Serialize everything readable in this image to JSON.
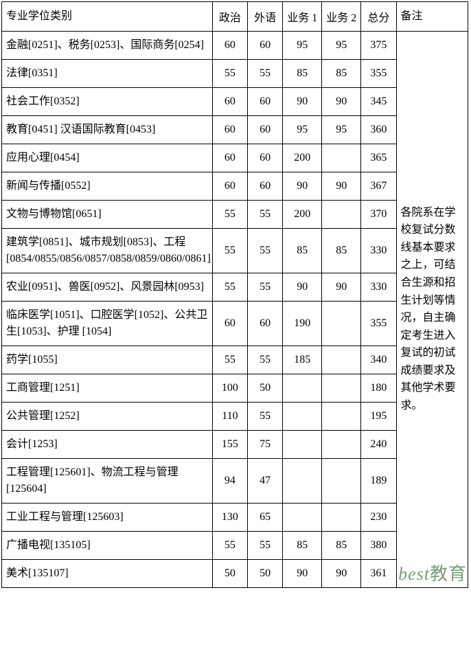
{
  "headers": {
    "major": "专业学位类别",
    "politics": "政治",
    "foreign": "外语",
    "biz1": "业务 1",
    "biz2": "业务 2",
    "total": "总分",
    "note": "备注"
  },
  "rows": [
    {
      "major": "金融[0251]、税务[0253]、国际商务[0254]",
      "politics": "60",
      "foreign": "60",
      "biz1": "95",
      "biz2": "95",
      "total": "375"
    },
    {
      "major": "法律[0351]",
      "politics": "55",
      "foreign": "55",
      "biz1": "85",
      "biz2": "85",
      "total": "355"
    },
    {
      "major": "社会工作[0352]",
      "politics": "60",
      "foreign": "60",
      "biz1": "90",
      "biz2": "90",
      "total": "345"
    },
    {
      "major": "教育[0451]\n汉语国际教育[0453]",
      "politics": "60",
      "foreign": "60",
      "biz1": "95",
      "biz2": "95",
      "total": "360"
    },
    {
      "major": "应用心理[0454]",
      "politics": "60",
      "foreign": "60",
      "biz1": "200",
      "biz2": "",
      "total": "365"
    },
    {
      "major": "新闻与传播[0552]",
      "politics": "60",
      "foreign": "60",
      "biz1": "90",
      "biz2": "90",
      "total": "367"
    },
    {
      "major": "文物与博物馆[0651]",
      "politics": "55",
      "foreign": "55",
      "biz1": "200",
      "biz2": "",
      "total": "370"
    },
    {
      "major": "建筑学[0851]、城市规划[0853]、工程[0854/0855/0856/0857/0858/0859/0860/0861]",
      "politics": "55",
      "foreign": "55",
      "biz1": "85",
      "biz2": "85",
      "total": "330"
    },
    {
      "major": "农业[0951]、兽医[0952]、风景园林[0953]",
      "politics": "55",
      "foreign": "55",
      "biz1": "90",
      "biz2": "90",
      "total": "330"
    },
    {
      "major": "临床医学[1051]、口腔医学[1052]、公共卫生[1053]、护理 [1054]",
      "politics": "60",
      "foreign": "60",
      "biz1": "190",
      "biz2": "",
      "total": "355"
    },
    {
      "major": "药学[1055]",
      "politics": "55",
      "foreign": "55",
      "biz1": "185",
      "biz2": "",
      "total": "340"
    },
    {
      "major": "工商管理[1251]",
      "politics": "100",
      "foreign": "50",
      "biz1": "",
      "biz2": "",
      "total": "180"
    },
    {
      "major": "公共管理[1252]",
      "politics": "110",
      "foreign": "55",
      "biz1": "",
      "biz2": "",
      "total": "195"
    },
    {
      "major": "会计[1253]",
      "politics": "155",
      "foreign": "75",
      "biz1": "",
      "biz2": "",
      "total": "240"
    },
    {
      "major": "工程管理[125601]、物流工程与管理[125604]",
      "politics": "94",
      "foreign": "47",
      "biz1": "",
      "biz2": "",
      "total": "189"
    },
    {
      "major": "工业工程与管理[125603]",
      "politics": "130",
      "foreign": "65",
      "biz1": "",
      "biz2": "",
      "total": "230"
    },
    {
      "major": "广播电视[135105]",
      "politics": "55",
      "foreign": "55",
      "biz1": "85",
      "biz2": "85",
      "total": "380"
    },
    {
      "major": "美术[135107]",
      "politics": "50",
      "foreign": "50",
      "biz1": "90",
      "biz2": "90",
      "total": "361"
    }
  ],
  "note_text": "各院系在学校复试分数线基本要求之上，可结合生源和招生计划等情况，自主确定考生进入复试的初试成绩要求及其他学术要求。",
  "watermark": {
    "en": "best",
    "cn": "教育"
  }
}
